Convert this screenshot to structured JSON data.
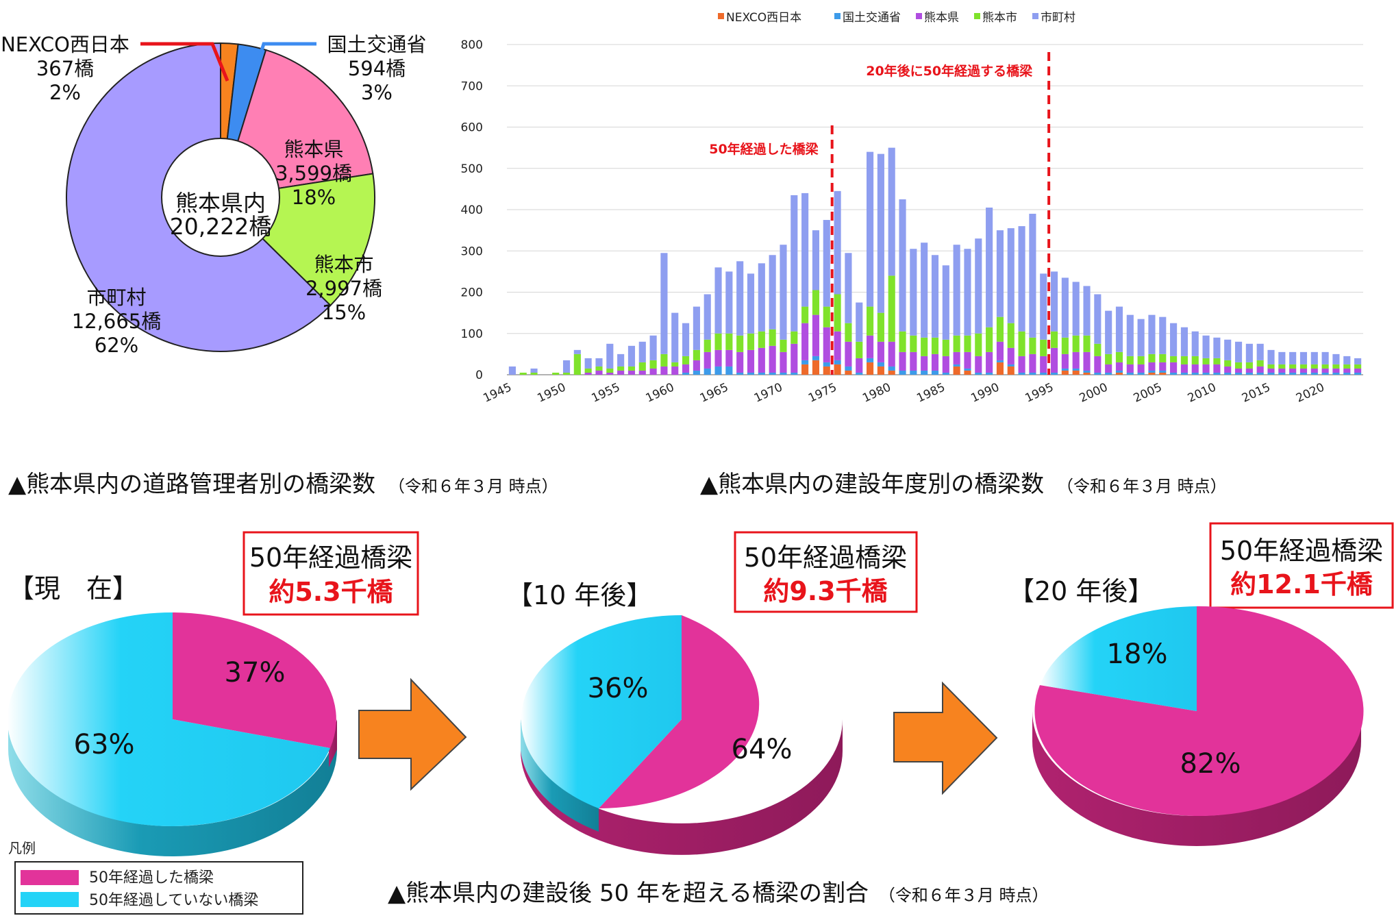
{
  "colors": {
    "nexco": "#ee6a2a",
    "mlit": "#3d9be9",
    "prefecture": "#b04de0",
    "city": "#7fe22b",
    "municipality": "#8e9ef0",
    "pie_nexco": "#f7831f",
    "pie_mlit": "#3d8cf0",
    "pie_pref": "#ff7fb4",
    "pie_city": "#b5f552",
    "pie_muni": "#a79bff",
    "over50": "#e2339a",
    "under50": "#24d3f7",
    "arrow": "#f7831f",
    "red": "#e8141b"
  },
  "chart_data": [
    {
      "type": "pie",
      "id": "manager_pie",
      "title": "▲熊本県内の道路管理者別の橋梁数",
      "note": "（令和６年３月 時点）",
      "center_label": [
        "熊本県内",
        "20,222橋"
      ],
      "slices": [
        {
          "name": "NEXCO西日本",
          "count": "367橋",
          "percent": 2,
          "label": "2%",
          "value": 367,
          "color": "#f7831f"
        },
        {
          "name": "国土交通省",
          "count": "594橋",
          "percent": 3,
          "label": "3%",
          "value": 594,
          "color": "#3d8cf0"
        },
        {
          "name": "熊本県",
          "count": "3,599橋",
          "percent": 18,
          "label": "18%",
          "value": 3599,
          "color": "#ff7fb4"
        },
        {
          "name": "熊本市",
          "count": "2,997橋",
          "percent": 15,
          "label": "15%",
          "value": 2997,
          "color": "#b5f552"
        },
        {
          "name": "市町村",
          "count": "12,665橋",
          "percent": 62,
          "label": "62%",
          "value": 12665,
          "color": "#a79bff"
        }
      ]
    },
    {
      "type": "bar",
      "stacked": true,
      "id": "year_bar",
      "title": "▲熊本県内の建設年度別の橋梁数",
      "note": "（令和６年３月 時点）",
      "ylim": [
        0,
        800
      ],
      "yticks": [
        "0",
        "100",
        "200",
        "300",
        "400",
        "500",
        "600",
        "700",
        "800"
      ],
      "xtick_labels": [
        "1945",
        "1950",
        "1955",
        "1960",
        "1965",
        "1970",
        "1975",
        "1980",
        "1985",
        "1990",
        "1995",
        "2000",
        "2005",
        "2010",
        "2015",
        "2020"
      ],
      "x_start": 1945,
      "x_end": 2023,
      "legend": [
        "NEXCO西日本",
        "国土交通省",
        "熊本県",
        "熊本市",
        "市町村"
      ],
      "annotations": [
        {
          "text": "50年経過した橋梁",
          "year": 1974.5
        },
        {
          "text": "20年後に50年経過する橋梁",
          "year": 1994.5
        }
      ],
      "series": [
        {
          "name": "NEXCO西日本",
          "values": [
            0,
            0,
            0,
            0,
            0,
            0,
            0,
            0,
            0,
            0,
            0,
            0,
            0,
            0,
            0,
            0,
            0,
            0,
            0,
            0,
            0,
            0,
            0,
            0,
            0,
            0,
            0,
            25,
            35,
            20,
            25,
            10,
            0,
            30,
            20,
            10,
            0,
            0,
            0,
            0,
            0,
            20,
            10,
            0,
            0,
            30,
            20,
            0,
            0,
            0,
            0,
            10,
            10,
            5,
            0,
            0,
            5,
            0,
            0,
            5,
            5,
            0,
            0,
            0,
            0,
            0,
            0,
            0,
            0,
            0,
            0,
            0,
            0,
            0,
            0,
            0,
            0,
            0,
            0
          ]
        },
        {
          "name": "国土交通省",
          "values": [
            0,
            0,
            0,
            0,
            0,
            0,
            0,
            0,
            0,
            0,
            0,
            0,
            0,
            0,
            0,
            0,
            5,
            10,
            15,
            20,
            20,
            5,
            5,
            5,
            5,
            5,
            5,
            10,
            10,
            10,
            10,
            10,
            5,
            10,
            10,
            10,
            10,
            10,
            10,
            10,
            5,
            5,
            5,
            5,
            5,
            5,
            5,
            5,
            5,
            5,
            5,
            5,
            5,
            5,
            5,
            5,
            5,
            5,
            5,
            5,
            5,
            5,
            5,
            5,
            5,
            5,
            5,
            5,
            5,
            5,
            5,
            5,
            5,
            5,
            5,
            5,
            5,
            5,
            5
          ]
        },
        {
          "name": "熊本県",
          "values": [
            0,
            0,
            0,
            0,
            0,
            0,
            0,
            5,
            10,
            5,
            10,
            10,
            10,
            15,
            20,
            20,
            20,
            25,
            40,
            40,
            40,
            50,
            55,
            60,
            65,
            50,
            70,
            90,
            100,
            85,
            70,
            60,
            35,
            55,
            50,
            60,
            45,
            45,
            35,
            40,
            40,
            30,
            40,
            40,
            50,
            45,
            40,
            40,
            45,
            40,
            60,
            35,
            40,
            45,
            40,
            20,
            20,
            20,
            20,
            20,
            20,
            25,
            20,
            20,
            20,
            20,
            15,
            10,
            10,
            15,
            10,
            10,
            10,
            10,
            10,
            10,
            10,
            10,
            10
          ]
        },
        {
          "name": "熊本市",
          "values": [
            0,
            5,
            5,
            0,
            5,
            5,
            50,
            10,
            10,
            10,
            10,
            10,
            20,
            20,
            30,
            10,
            20,
            25,
            30,
            40,
            40,
            40,
            40,
            40,
            40,
            30,
            30,
            40,
            60,
            50,
            90,
            45,
            40,
            70,
            70,
            160,
            50,
            40,
            45,
            40,
            40,
            40,
            40,
            55,
            60,
            60,
            60,
            60,
            40,
            40,
            40,
            40,
            40,
            40,
            30,
            25,
            25,
            20,
            20,
            20,
            20,
            15,
            20,
            20,
            15,
            15,
            15,
            15,
            15,
            15,
            10,
            10,
            10,
            10,
            10,
            10,
            10,
            10,
            10
          ]
        },
        {
          "name": "市町村",
          "values": [
            20,
            0,
            10,
            0,
            0,
            30,
            10,
            25,
            20,
            60,
            30,
            50,
            50,
            60,
            245,
            120,
            80,
            105,
            110,
            160,
            150,
            180,
            145,
            165,
            180,
            230,
            330,
            275,
            145,
            210,
            250,
            170,
            95,
            375,
            385,
            310,
            320,
            210,
            230,
            200,
            180,
            220,
            210,
            230,
            290,
            210,
            230,
            255,
            300,
            160,
            145,
            145,
            130,
            120,
            120,
            105,
            110,
            100,
            90,
            95,
            90,
            80,
            70,
            60,
            55,
            50,
            50,
            50,
            45,
            40,
            35,
            30,
            30,
            30,
            30,
            30,
            25,
            20,
            15
          ]
        }
      ]
    },
    {
      "type": "pie",
      "id": "over50_now",
      "period": "【現　在】",
      "box_title": "50年経過橋梁",
      "box_value": "約5.3千橋",
      "slices": [
        {
          "name": "50年経過した橋梁",
          "percent": 37,
          "label": "37%",
          "color": "#e2339a"
        },
        {
          "name": "50年経過していない橋梁",
          "percent": 63,
          "label": "63%",
          "color": "#24d3f7"
        }
      ]
    },
    {
      "type": "pie",
      "id": "over50_10y",
      "period": "【10 年後】",
      "box_title": "50年経過橋梁",
      "box_value": "約9.3千橋",
      "slices": [
        {
          "name": "50年経過した橋梁",
          "percent": 64,
          "label": "64%",
          "color": "#e2339a"
        },
        {
          "name": "50年経過していない橋梁",
          "percent": 36,
          "label": "36%",
          "color": "#24d3f7"
        }
      ]
    },
    {
      "type": "pie",
      "id": "over50_20y",
      "period": "【20 年後】",
      "box_title": "50年経過橋梁",
      "box_value": "約12.1千橋",
      "slices": [
        {
          "name": "50年経過した橋梁",
          "percent": 82,
          "label": "82%",
          "color": "#e2339a"
        },
        {
          "name": "50年経過していない橋梁",
          "percent": 18,
          "label": "18%",
          "color": "#24d3f7"
        }
      ]
    }
  ],
  "bottom_caption": {
    "title": "▲熊本県内の建設後 50 年を超える橋梁の割合",
    "note": "（令和６年３月 時点）"
  },
  "legend_box": {
    "title": "凡例",
    "items": [
      "50年経過した橋梁",
      "50年経過していない橋梁"
    ]
  }
}
